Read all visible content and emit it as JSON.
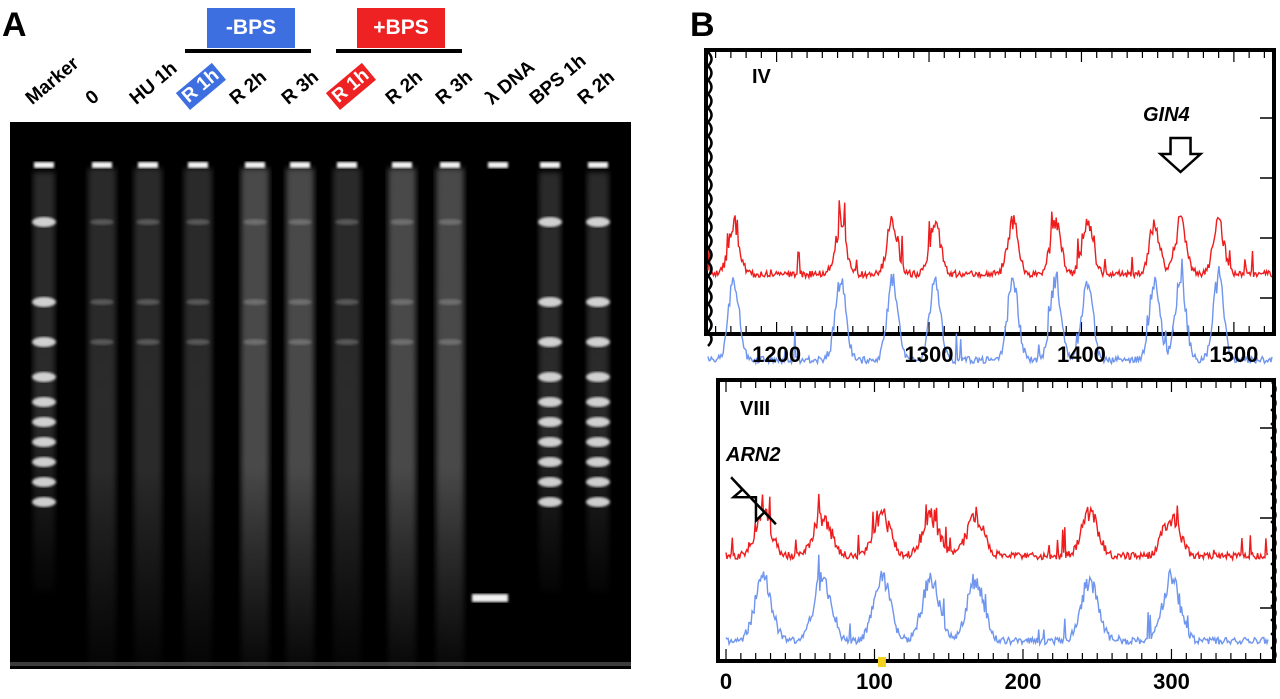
{
  "panel_a": {
    "letter": "A",
    "group_minus": {
      "label": "-BPS",
      "color": "#3d6fe0"
    },
    "group_plus": {
      "label": "+BPS",
      "color": "#ee2222"
    },
    "lanes": [
      {
        "label": "Marker"
      },
      {
        "label": "0"
      },
      {
        "label": "HU 1h"
      },
      {
        "label": "R 1h",
        "highlight": "#3d6fe0"
      },
      {
        "label": "R 2h"
      },
      {
        "label": "R 3h"
      },
      {
        "label": "R 1h",
        "highlight": "#ee2222"
      },
      {
        "label": "R 2h"
      },
      {
        "label": "R 3h"
      },
      {
        "label": "λ DNA"
      },
      {
        "label": "BPS 1h"
      },
      {
        "label": "R 2h"
      }
    ]
  },
  "panel_b": {
    "letter": "B",
    "gene_top": "GIN4",
    "gene_bottom": "ARN2",
    "colors": {
      "red_series": "#ee1c1c",
      "blue_series": "#6f95ee",
      "marker": "#f2d21c"
    }
  },
  "chart_data": [
    {
      "type": "line",
      "chromosome": "IV",
      "xlim": [
        1155,
        1525
      ],
      "xticks": [
        1200,
        1300,
        1400,
        1500
      ],
      "series": [
        {
          "color": "red",
          "peaks": [
            1172,
            1242,
            1276,
            1304,
            1355,
            1383,
            1404,
            1448,
            1465,
            1490
          ]
        },
        {
          "color": "blue",
          "peaks": [
            1172,
            1242,
            1276,
            1304,
            1355,
            1383,
            1404,
            1448,
            1465,
            1490
          ]
        }
      ]
    },
    {
      "type": "line",
      "chromosome": "VIII",
      "xlim": [
        0,
        365
      ],
      "xticks": [
        0,
        100,
        200,
        300
      ],
      "series": [
        {
          "color": "red",
          "peaks": [
            25,
            65,
            105,
            138,
            168,
            245,
            300
          ]
        },
        {
          "color": "blue",
          "peaks": [
            25,
            65,
            105,
            138,
            168,
            245,
            300
          ]
        }
      ]
    }
  ]
}
